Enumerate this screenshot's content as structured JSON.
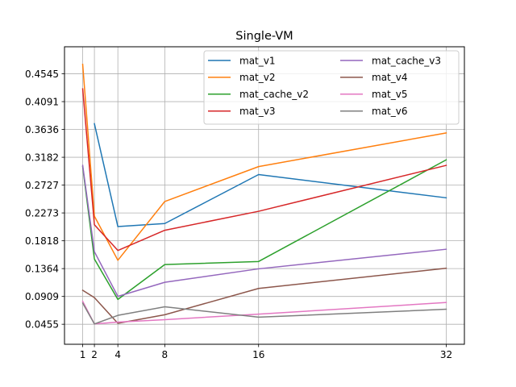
{
  "chart_data": {
    "type": "line",
    "title": "Single-VM",
    "xlabel": "",
    "ylabel": "",
    "x": [
      1,
      2,
      4,
      8,
      16,
      32
    ],
    "xticks": [
      "1",
      "2",
      "4",
      "8",
      "16",
      "32"
    ],
    "yticks": [
      "0.0455",
      "0.0909",
      "0.1364",
      "0.1818",
      "0.2273",
      "0.2727",
      "0.3182",
      "0.3636",
      "0.4091",
      "0.4545"
    ],
    "ytick_values": [
      0.0455,
      0.0909,
      0.1364,
      0.1818,
      0.2273,
      0.2727,
      0.3182,
      0.3636,
      0.4091,
      0.4545
    ],
    "xlim": [
      -0.55,
      33.55
    ],
    "ylim": [
      0.0128,
      0.4987
    ],
    "grid": true,
    "legend": {
      "placement": "top-right",
      "columns": 2
    },
    "series": [
      {
        "name": "mat_v1",
        "color": "#1f77b4",
        "points": [
          [
            2,
            0.373
          ],
          [
            4,
            0.205
          ],
          [
            8,
            0.21
          ],
          [
            16,
            0.29
          ],
          [
            32,
            0.252
          ]
        ]
      },
      {
        "name": "mat_v2",
        "color": "#ff7f0e",
        "points": [
          [
            1,
            0.47
          ],
          [
            2,
            0.222
          ],
          [
            4,
            0.15
          ],
          [
            8,
            0.246
          ],
          [
            16,
            0.303
          ],
          [
            32,
            0.358
          ]
        ]
      },
      {
        "name": "mat_cache_v2",
        "color": "#2ca02c",
        "points": [
          [
            1,
            0.303
          ],
          [
            2,
            0.152
          ],
          [
            4,
            0.086
          ],
          [
            8,
            0.143
          ],
          [
            16,
            0.148
          ],
          [
            32,
            0.314
          ]
        ]
      },
      {
        "name": "mat_v3",
        "color": "#d62728",
        "points": [
          [
            1,
            0.43
          ],
          [
            2,
            0.208
          ],
          [
            4,
            0.166
          ],
          [
            8,
            0.199
          ],
          [
            16,
            0.23
          ],
          [
            32,
            0.305
          ]
        ]
      },
      {
        "name": "mat_cache_v3",
        "color": "#9467bd",
        "points": [
          [
            1,
            0.305
          ],
          [
            2,
            0.164
          ],
          [
            4,
            0.091
          ],
          [
            8,
            0.114
          ],
          [
            16,
            0.136
          ],
          [
            32,
            0.168
          ]
        ]
      },
      {
        "name": "mat_v4",
        "color": "#8c564b",
        "points": [
          [
            1,
            0.101
          ],
          [
            2,
            0.089
          ],
          [
            4,
            0.047
          ],
          [
            8,
            0.061
          ],
          [
            16,
            0.104
          ],
          [
            32,
            0.137
          ]
        ]
      },
      {
        "name": "mat_v5",
        "color": "#e377c2",
        "points": [
          [
            1,
            0.083
          ],
          [
            2,
            0.046
          ],
          [
            4,
            0.049
          ],
          [
            8,
            0.053
          ],
          [
            16,
            0.062
          ],
          [
            32,
            0.081
          ]
        ]
      },
      {
        "name": "mat_v6",
        "color": "#7f7f7f",
        "points": [
          [
            1,
            0.08
          ],
          [
            2,
            0.046
          ],
          [
            4,
            0.06
          ],
          [
            8,
            0.074
          ],
          [
            16,
            0.057
          ],
          [
            32,
            0.07
          ]
        ]
      }
    ]
  }
}
